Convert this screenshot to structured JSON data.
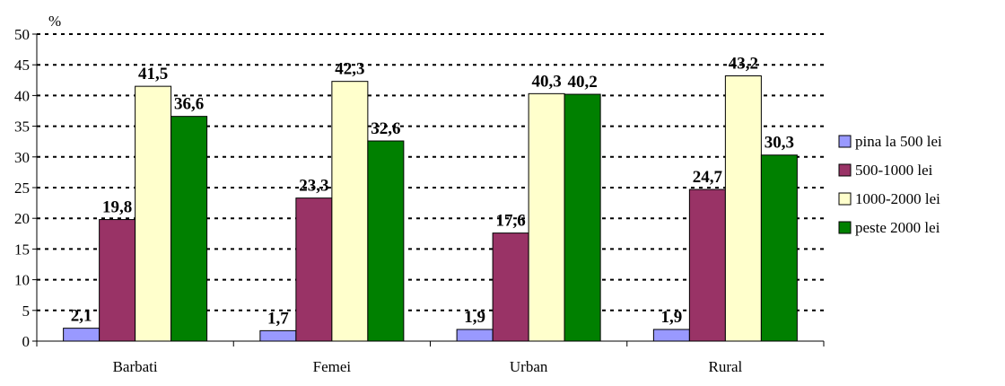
{
  "chart_data": {
    "type": "bar",
    "title": "",
    "xlabel": "",
    "ylabel": "%",
    "ylim": [
      0,
      50
    ],
    "ytick_step": 5,
    "grid": true,
    "legend_position": "right",
    "categories": [
      "Barbati",
      "Femei",
      "Urban",
      "Rural"
    ],
    "series": [
      {
        "name": "pina la 500 lei",
        "color": "#9999ff",
        "values": [
          2.1,
          1.7,
          1.9,
          1.9
        ],
        "labels": [
          "2,1",
          "1,7",
          "1,9",
          "1,9"
        ]
      },
      {
        "name": "500-1000 lei",
        "color": "#993366",
        "values": [
          19.8,
          23.3,
          17.6,
          24.7
        ],
        "labels": [
          "19,8",
          "23,3",
          "17,6",
          "24,7"
        ]
      },
      {
        "name": "1000-2000 lei",
        "color": "#ffffcc",
        "values": [
          41.5,
          42.3,
          40.3,
          43.2
        ],
        "labels": [
          "41,5",
          "42,3",
          "40,3",
          "43,2"
        ]
      },
      {
        "name": "peste 2000 lei",
        "color": "#008000",
        "values": [
          36.6,
          32.6,
          40.2,
          30.3
        ],
        "labels": [
          "36,6",
          "32,6",
          "40,2",
          "30,3"
        ]
      }
    ]
  }
}
